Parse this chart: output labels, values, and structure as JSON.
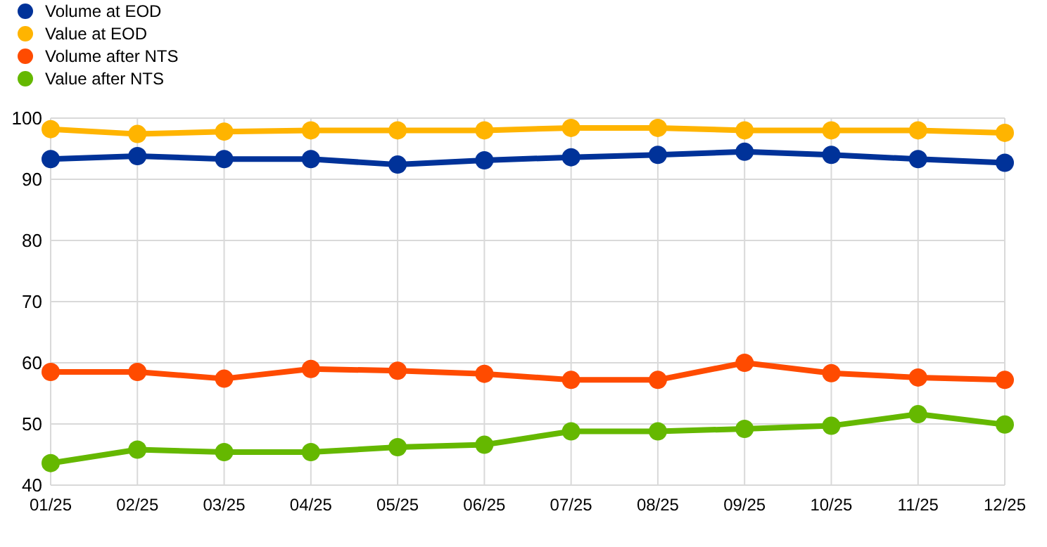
{
  "chart_data": {
    "type": "line",
    "categories": [
      "01/25",
      "02/25",
      "03/25",
      "04/25",
      "05/25",
      "06/25",
      "07/25",
      "08/25",
      "09/25",
      "10/25",
      "11/25",
      "12/25"
    ],
    "series": [
      {
        "name": "Volume at EOD",
        "color": "#003299",
        "values": [
          93.3,
          93.8,
          93.3,
          93.3,
          92.4,
          93.1,
          93.6,
          94.0,
          94.5,
          94.0,
          93.3,
          92.7
        ]
      },
      {
        "name": "Value at EOD",
        "color": "#ffb400",
        "values": [
          98.2,
          97.4,
          97.8,
          98.0,
          98.0,
          98.0,
          98.4,
          98.4,
          98.0,
          98.0,
          98.0,
          97.6
        ]
      },
      {
        "name": "Volume after NTS",
        "color": "#ff4b00",
        "values": [
          58.5,
          58.5,
          57.4,
          59.0,
          58.7,
          58.2,
          57.2,
          57.2,
          60.0,
          58.3,
          57.6,
          57.2
        ]
      },
      {
        "name": "Value after NTS",
        "color": "#65b800",
        "values": [
          43.6,
          45.8,
          45.4,
          45.4,
          46.2,
          46.6,
          48.8,
          48.8,
          49.2,
          49.7,
          51.6,
          49.9
        ]
      }
    ],
    "ylim": [
      40,
      100
    ],
    "yticks": [
      40,
      50,
      60,
      70,
      80,
      90,
      100
    ],
    "grid": true,
    "legend": "top left",
    "marker": "circle",
    "line_style": "solid"
  }
}
